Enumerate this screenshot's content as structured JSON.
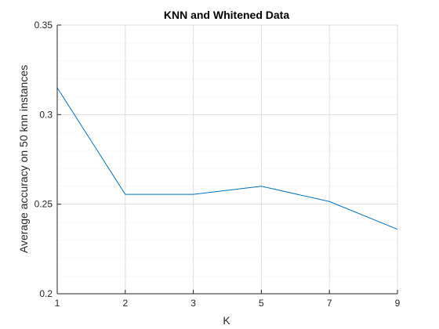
{
  "chart_data": {
    "type": "line",
    "title": "KNN and Whitened Data",
    "xlabel": "K",
    "ylabel": "Average accuracy on 50 knn instances",
    "x": [
      "1",
      "2",
      "3",
      "5",
      "7",
      "9"
    ],
    "series": [
      {
        "values": [
          0.315,
          0.2555,
          0.2555,
          0.26,
          0.2515,
          0.236
        ],
        "color": "#0072bd"
      }
    ],
    "ylim": [
      0.2,
      0.35
    ],
    "yticks": [
      "0.2",
      "0.25",
      "0.3",
      "0.35"
    ],
    "grid": true,
    "minor_grid": true,
    "legend": "none"
  }
}
